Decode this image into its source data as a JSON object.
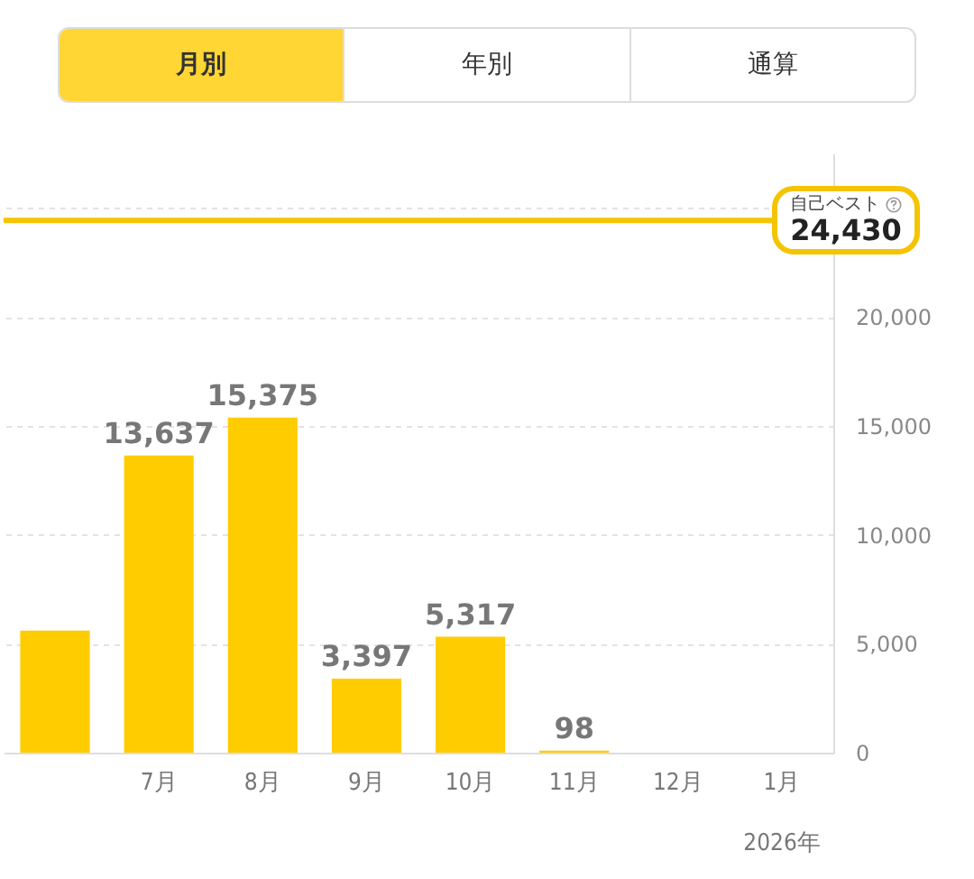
{
  "chart_data": {
    "type": "bar",
    "categories": [
      null,
      "7月",
      "8月",
      "9月",
      "10月",
      "11月",
      "12月",
      "1月"
    ],
    "values": [
      5600,
      13637,
      15375,
      3397,
      5317,
      98,
      null,
      null
    ],
    "value_labels": [
      null,
      "13,637",
      "15,375",
      "3,397",
      "5,317",
      "98",
      null,
      null
    ],
    "color": "#ffcc00",
    "ylim": [
      0,
      27500
    ],
    "yticks": [
      {
        "value": 0,
        "label": "0"
      },
      {
        "value": 5000,
        "label": "5,000"
      },
      {
        "value": 10000,
        "label": "10,000"
      },
      {
        "value": 15000,
        "label": "15,000"
      },
      {
        "value": 20000,
        "label": "20,000"
      },
      {
        "value": 25000,
        "label": null
      }
    ],
    "grid": "y",
    "ref_lines": [
      {
        "axis": "y",
        "value": 24430,
        "label": "自己ベスト\n24,430",
        "color": "#f5c400"
      }
    ],
    "annotations": [
      "月別",
      "年別",
      "通算",
      "2026年"
    ]
  }
}
